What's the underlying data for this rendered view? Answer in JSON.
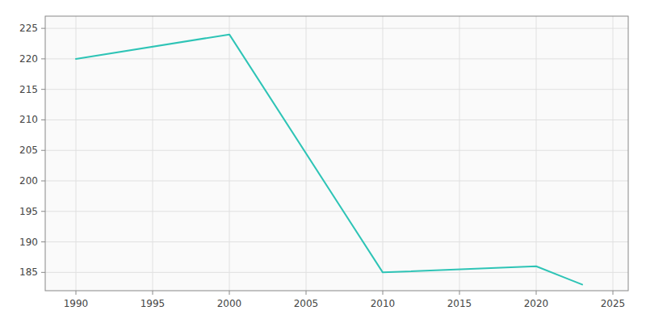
{
  "chart_data": {
    "type": "line",
    "x": [
      1990,
      2000,
      2010,
      2020,
      2022,
      2023
    ],
    "values": [
      220,
      224,
      185,
      186,
      184,
      183
    ],
    "color": "#2ec4b6",
    "xlim": [
      1988,
      2026
    ],
    "ylim": [
      182,
      227
    ],
    "xticks": [
      1990,
      1995,
      2000,
      2005,
      2010,
      2015,
      2020,
      2025
    ],
    "yticks": [
      185,
      190,
      195,
      200,
      205,
      210,
      215,
      220,
      225
    ],
    "grid": true
  }
}
